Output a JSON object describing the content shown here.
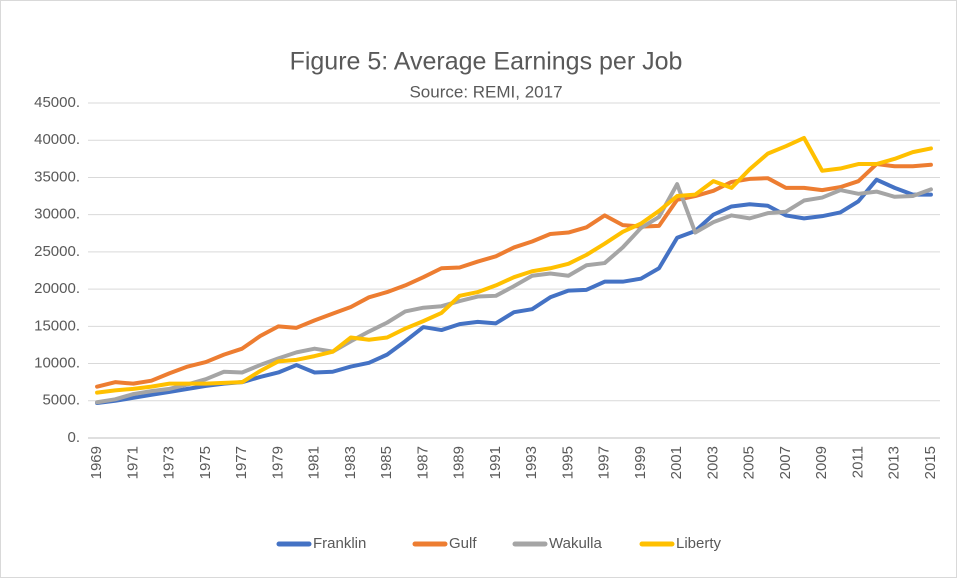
{
  "chart_data": {
    "type": "line",
    "title": "Figure 5: Average Earnings per Job",
    "subtitle": "Source: REMI, 2017",
    "categories": [
      "1969",
      null,
      "1971",
      null,
      "1973",
      null,
      "1975",
      null,
      "1977",
      null,
      "1979",
      null,
      "1981",
      null,
      "1983",
      null,
      "1985",
      null,
      "1987",
      null,
      "1989",
      null,
      "1991",
      null,
      "1993",
      null,
      "1995",
      null,
      "1997",
      null,
      "1999",
      null,
      "2001",
      null,
      "2003",
      null,
      "2005",
      null,
      "2007",
      null,
      "2009",
      null,
      "2011",
      null,
      "2013",
      null,
      "2015"
    ],
    "series": [
      {
        "name": "Franklin",
        "color": "#4472c4",
        "values": [
          4700,
          5000,
          5400,
          5800,
          6200,
          6600,
          7000,
          7300,
          7500,
          8200,
          8800,
          9800,
          8800,
          8900,
          9600,
          10100,
          11200,
          13000,
          14900,
          14500,
          15300,
          15600,
          15400,
          16900,
          17300,
          18900,
          19800,
          19900,
          21000,
          21000,
          21400,
          22800,
          26900,
          27800,
          30000,
          31100,
          31400,
          31200,
          29900,
          29500,
          29800,
          30300,
          31800,
          34700,
          33600,
          32700,
          32700
        ]
      },
      {
        "name": "Gulf",
        "color": "#ed7d31",
        "values": [
          6900,
          7500,
          7300,
          7700,
          8700,
          9600,
          10200,
          11200,
          12000,
          13700,
          15000,
          14800,
          15800,
          16700,
          17600,
          18900,
          19600,
          20500,
          21600,
          22800,
          22900,
          23700,
          24400,
          25600,
          26400,
          27400,
          27600,
          28300,
          29900,
          28600,
          28400,
          28500,
          32000,
          32500,
          33200,
          34400,
          34800,
          34900,
          33600,
          33600,
          33300,
          33700,
          34500,
          36800,
          36500,
          36500,
          36700
        ]
      },
      {
        "name": "Wakulla",
        "color": "#a5a5a5",
        "values": [
          4800,
          5200,
          5900,
          6300,
          6600,
          7200,
          7900,
          8900,
          8800,
          9800,
          10700,
          11500,
          12000,
          11600,
          13000,
          14300,
          15500,
          17000,
          17500,
          17700,
          18400,
          19000,
          19100,
          20400,
          21800,
          22100,
          21800,
          23200,
          23500,
          25600,
          28200,
          29700,
          34100,
          27600,
          29000,
          29900,
          29500,
          30200,
          30400,
          31900,
          32300,
          33300,
          32800,
          33100,
          32400,
          32500,
          33400
        ]
      },
      {
        "name": "Liberty",
        "color": "#ffc000",
        "values": [
          6100,
          6400,
          6600,
          6900,
          7300,
          7300,
          7300,
          7400,
          7500,
          9000,
          10300,
          10500,
          11000,
          11600,
          13500,
          13200,
          13500,
          14700,
          15700,
          16800,
          19100,
          19600,
          20500,
          21600,
          22400,
          22800,
          23400,
          24600,
          26100,
          27700,
          28800,
          30500,
          32500,
          32700,
          34500,
          33600,
          36100,
          38200,
          39200,
          40300,
          35900,
          36200,
          36800,
          36800,
          37500,
          38400,
          38900
        ]
      }
    ],
    "ylim": [
      0,
      45000
    ],
    "yticks": [
      {
        "value": 0,
        "label": "0."
      },
      {
        "value": 5000,
        "label": "5000."
      },
      {
        "value": 10000,
        "label": "10000."
      },
      {
        "value": 15000,
        "label": "15000."
      },
      {
        "value": 20000,
        "label": "20000."
      },
      {
        "value": 25000,
        "label": "25000."
      },
      {
        "value": 30000,
        "label": "30000."
      },
      {
        "value": 35000,
        "label": "35000."
      },
      {
        "value": 40000,
        "label": "40000."
      },
      {
        "value": 45000,
        "label": "45000."
      }
    ],
    "grid": true,
    "legend": "bottom"
  }
}
